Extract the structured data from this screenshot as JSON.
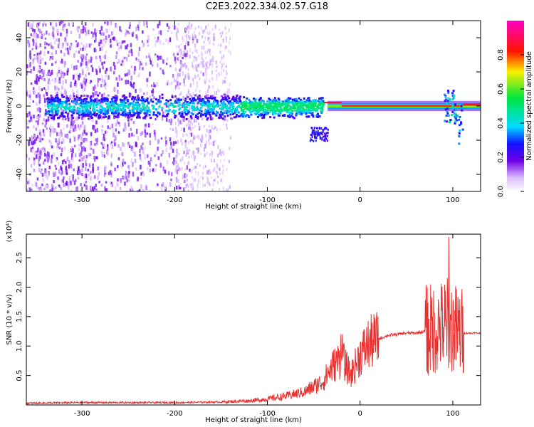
{
  "title": "C2E3.2022.334.02.57.G18",
  "chart_data": [
    {
      "type": "heatmap",
      "xlabel": "Height of straight line (km)",
      "ylabel": "Frequency (Hz)",
      "xlim": [
        -360,
        130
      ],
      "ylim": [
        -50,
        50
      ],
      "xticks": [
        -300,
        -200,
        -100,
        0,
        100
      ],
      "yticks": [
        -40,
        -20,
        0,
        20,
        40
      ],
      "colorbar": {
        "label": "Normalized spectral amplitude",
        "ticks": [
          0.0,
          0.2,
          0.4,
          0.6,
          0.8
        ],
        "range": [
          0,
          1
        ],
        "colormap": "white-purple-blue-cyan-green-yellow-red-magenta"
      },
      "description_regions": [
        {
          "x_from": -360,
          "x_to": -150,
          "y_from": -50,
          "y_to": 50,
          "level": 0.1
        },
        {
          "x_from": -150,
          "x_to": -40,
          "y_from": -8,
          "y_to": 8,
          "level": 0.35
        },
        {
          "x_from": -30,
          "x_to": 110,
          "y_from": -2,
          "y_to": 2,
          "level": 0.9
        }
      ]
    },
    {
      "type": "line",
      "xlabel": "Height of straight line (km)",
      "ylabel": "SNR (10 * v/v)",
      "scale_label": "(x10⁴)",
      "xlim": [
        -360,
        130
      ],
      "ylim": [
        0,
        2.9
      ],
      "xticks": [
        -300,
        -200,
        -100,
        0,
        100
      ],
      "yticks": [
        0.5,
        1.0,
        1.5,
        2.0,
        2.5
      ],
      "color": "#e8302f",
      "series": [
        {
          "x": [
            -360,
            -300,
            -200,
            -150,
            -120,
            -100,
            -80,
            -60,
            -40,
            -30,
            -20,
            -10,
            0,
            10,
            20,
            30,
            40,
            50,
            60,
            70,
            80,
            90,
            95,
            100,
            105,
            110,
            120,
            130
          ],
          "values": [
            0.03,
            0.04,
            0.04,
            0.05,
            0.07,
            0.1,
            0.15,
            0.22,
            0.4,
            0.65,
            0.8,
            0.5,
            0.85,
            1.05,
            1.12,
            1.18,
            1.2,
            1.22,
            1.22,
            1.25,
            1.3,
            1.35,
            1.4,
            1.3,
            1.25,
            1.22,
            1.22,
            1.22
          ]
        }
      ]
    }
  ]
}
